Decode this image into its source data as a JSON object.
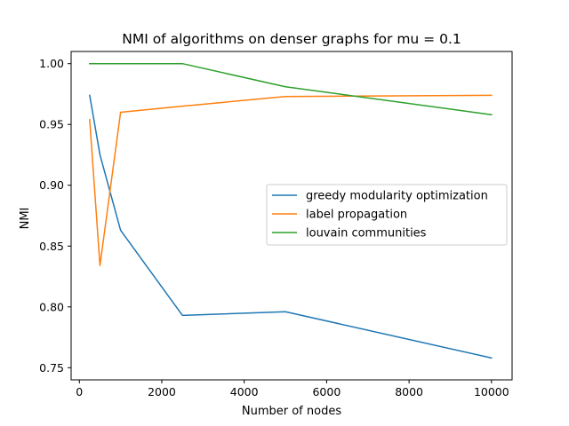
{
  "chart_data": {
    "type": "line",
    "title": "NMI of algorithms on denser graphs for mu = 0.1",
    "xlabel": "Number of nodes",
    "ylabel": "NMI",
    "xlim": [
      -200,
      10500
    ],
    "ylim": [
      0.74,
      1.01
    ],
    "xticks": [
      0,
      2000,
      4000,
      6000,
      8000,
      10000
    ],
    "xtick_labels": [
      "0",
      "2000",
      "4000",
      "6000",
      "8000",
      "10000"
    ],
    "yticks": [
      0.75,
      0.8,
      0.85,
      0.9,
      0.95,
      1.0
    ],
    "ytick_labels": [
      "0.75",
      "0.80",
      "0.85",
      "0.90",
      "0.95",
      "1.00"
    ],
    "grid": false,
    "legend_position": "center-right",
    "series": [
      {
        "name": "greedy modularity optimization",
        "color": "#1f77b4",
        "x": [
          250,
          500,
          1000,
          2500,
          5000,
          10000
        ],
        "y": [
          0.974,
          0.925,
          0.863,
          0.793,
          0.796,
          0.758
        ]
      },
      {
        "name": "label propagation",
        "color": "#ff7f0e",
        "x": [
          250,
          500,
          1000,
          2500,
          5000,
          10000
        ],
        "y": [
          0.954,
          0.834,
          0.96,
          0.965,
          0.973,
          0.974
        ]
      },
      {
        "name": "louvain communities",
        "color": "#2ca02c",
        "x": [
          250,
          500,
          1000,
          2500,
          5000,
          10000
        ],
        "y": [
          1.0,
          1.0,
          1.0,
          1.0,
          0.981,
          0.958
        ]
      }
    ]
  }
}
